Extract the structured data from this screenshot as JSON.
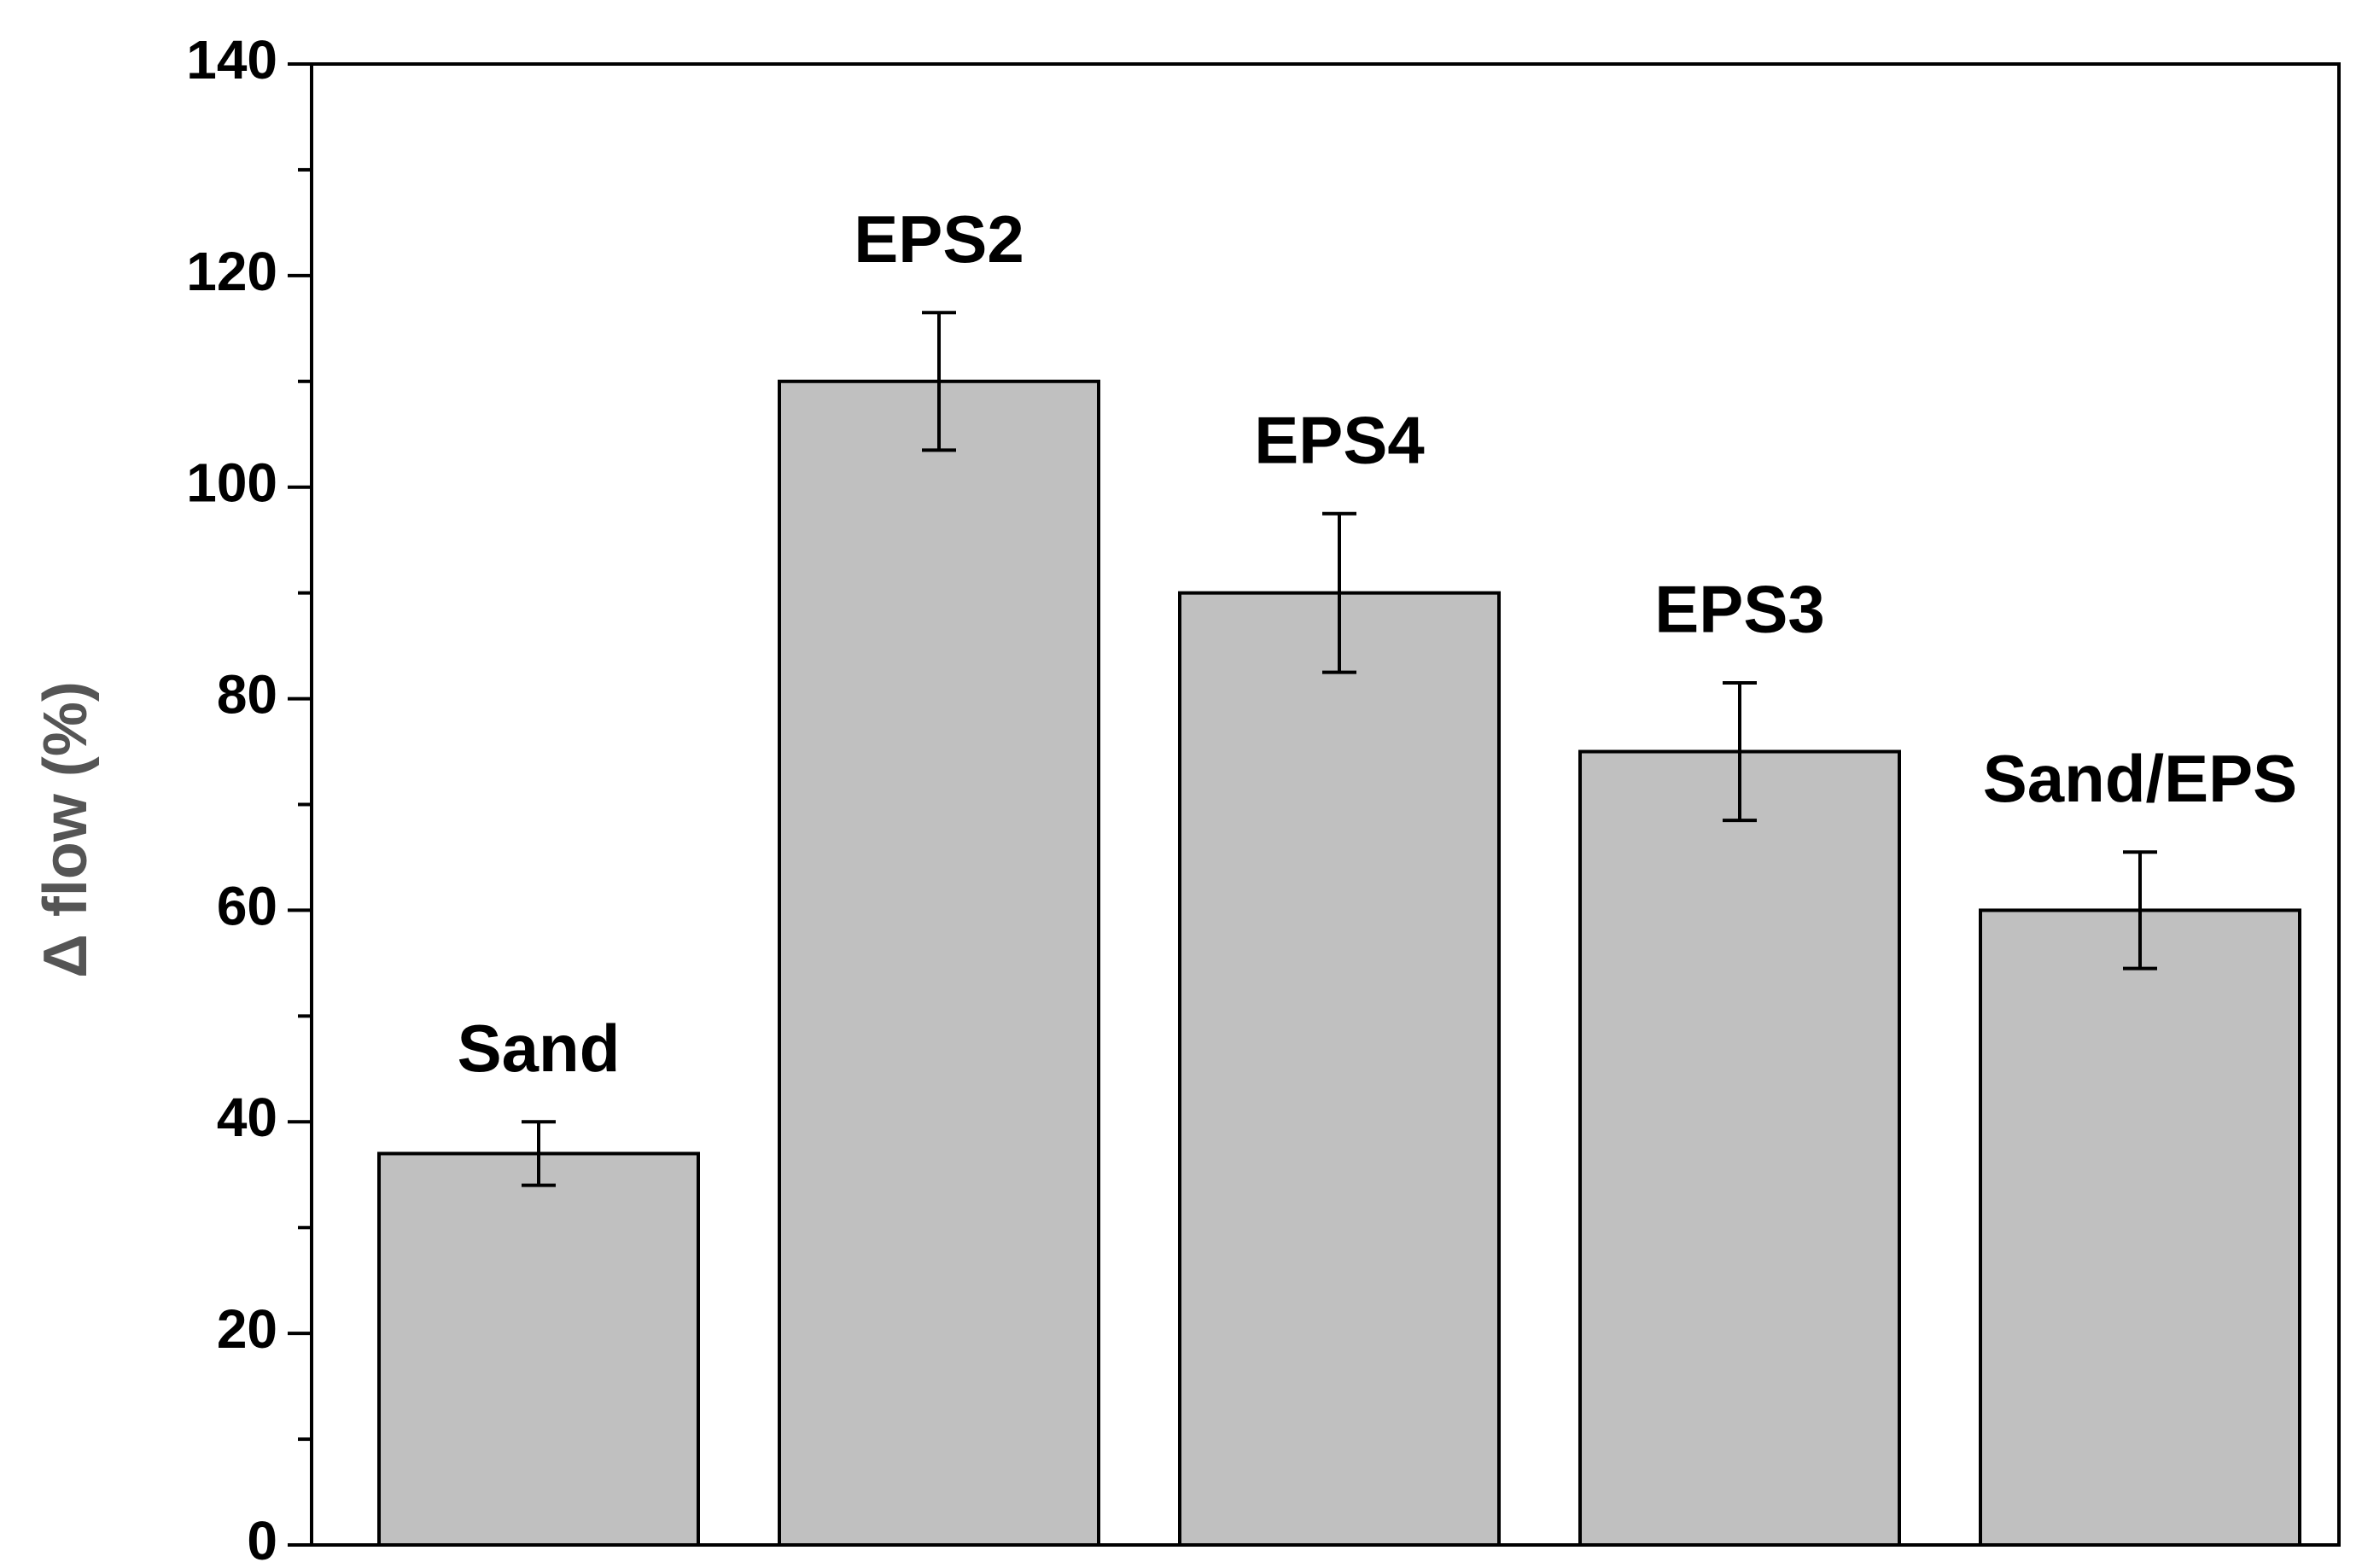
{
  "chart_data": {
    "type": "bar",
    "ylabel": "Δ flow (%)",
    "categories": [
      "Sand",
      "EPS2",
      "EPS4",
      "EPS3",
      "Sand/EPS"
    ],
    "values": [
      37,
      110,
      90,
      75,
      60
    ],
    "errors": [
      3,
      6.5,
      7.5,
      6.5,
      5.5
    ],
    "color": "#c0c0c0",
    "ylim": [
      0,
      140
    ],
    "yticks": [
      0,
      20,
      40,
      60,
      80,
      100,
      120,
      140
    ],
    "yminorticks": [
      10,
      30,
      50,
      70,
      90,
      110,
      130
    ],
    "grid": false
  }
}
